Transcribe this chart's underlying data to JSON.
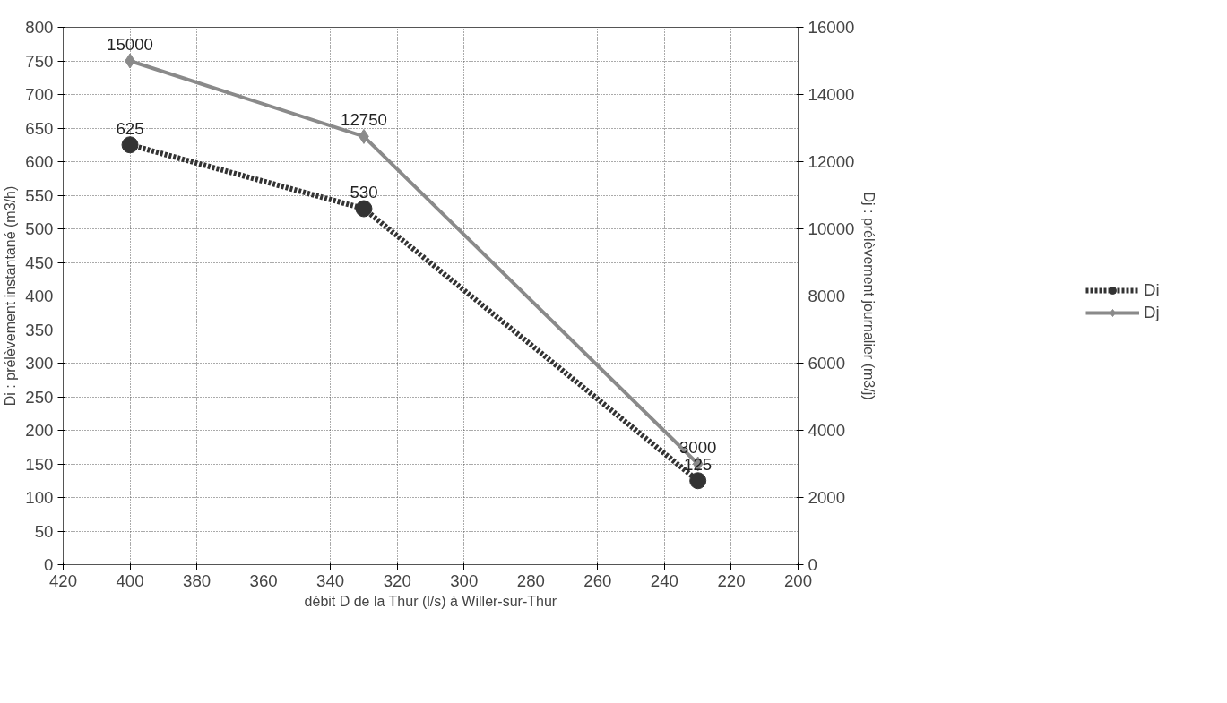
{
  "chart_data": {
    "type": "line",
    "xlabel": "débit D de la Thur (l/s) à Willer-sur-Thur",
    "ylabel": "Di : prélèvement instantané (m3/h)",
    "y2label": "Dj : prélèvement journalier (m3/j)",
    "x": [
      400,
      330,
      230
    ],
    "series": [
      {
        "name": "Di",
        "color": "#333333",
        "values": [
          625,
          530,
          125
        ],
        "marker": "circle",
        "line_style": "dotted"
      },
      {
        "name": "Dj",
        "color": "#8a8a8a",
        "values": [
          15000,
          12750,
          3000
        ],
        "marker": "diamond",
        "line_style": "solid",
        "axis": "y2"
      }
    ],
    "xlim": [
      420,
      200
    ],
    "xticks": [
      420,
      400,
      380,
      360,
      340,
      320,
      300,
      280,
      260,
      240,
      220,
      200
    ],
    "ylim": [
      0,
      800
    ],
    "yticks": [
      0,
      50,
      100,
      150,
      200,
      250,
      300,
      350,
      400,
      450,
      500,
      550,
      600,
      650,
      700,
      750,
      800
    ],
    "y2lim": [
      0,
      16000
    ],
    "y2ticks": [
      0,
      2000,
      4000,
      6000,
      8000,
      10000,
      12000,
      14000,
      16000
    ],
    "data_labels": true,
    "grid": true,
    "legend": "right"
  }
}
